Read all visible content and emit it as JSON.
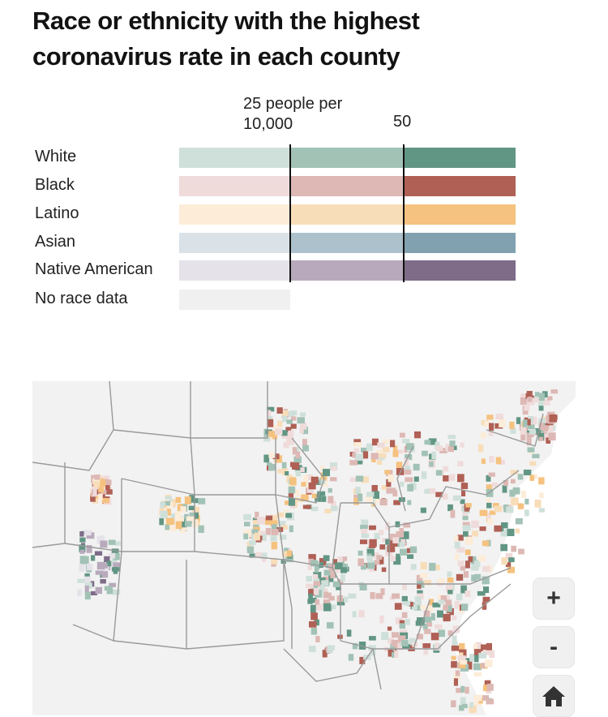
{
  "title": "Race or ethnicity with the highest coronavirus rate in each county",
  "legend": {
    "threshold_1_label": "25 people per 10,000",
    "threshold_2_label": "50",
    "rows": [
      {
        "label": "White",
        "colors": [
          "#cfe0da",
          "#a2c2b6",
          "#629684"
        ]
      },
      {
        "label": "Black",
        "colors": [
          "#f0dbdb",
          "#ddb8b4",
          "#b06055"
        ]
      },
      {
        "label": "Latino",
        "colors": [
          "#fcecd8",
          "#f8ddb9",
          "#f5c27f"
        ]
      },
      {
        "label": "Asian",
        "colors": [
          "#dae2e8",
          "#acc1cb",
          "#82a1b0"
        ]
      },
      {
        "label": "Native American",
        "colors": [
          "#e5e3e9",
          "#b8aabc",
          "#7e6c89"
        ]
      },
      {
        "label": "No race data",
        "colors": [
          "#f0f0f0"
        ]
      }
    ]
  },
  "map_controls": {
    "zoom_in": "+",
    "zoom_out": "-",
    "home_icon": "home-icon"
  }
}
